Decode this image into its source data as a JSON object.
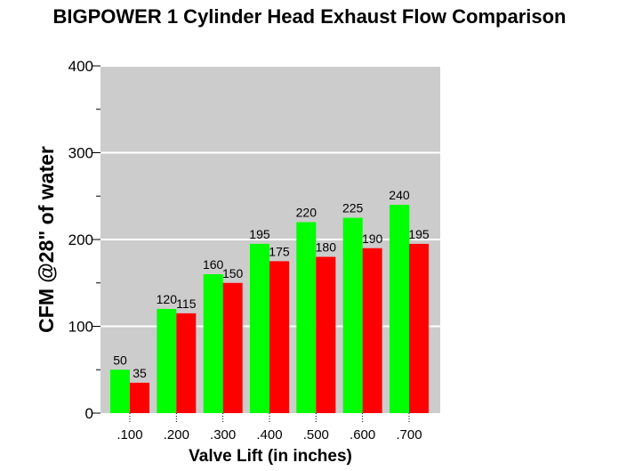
{
  "chart_data": {
    "type": "bar",
    "title": "BIGPOWER 1 Cylinder Head Exhaust Flow Comparison",
    "xlabel": "Valve Lift (in inches)",
    "ylabel": "CFM @28\" of water",
    "categories": [
      ".100",
      ".200",
      ".300",
      ".400",
      ".500",
      ".600",
      ".700"
    ],
    "series": [
      {
        "values": [
          50,
          120,
          160,
          195,
          220,
          225,
          240
        ],
        "color": "#00ff00"
      },
      {
        "values": [
          35,
          115,
          150,
          175,
          180,
          190,
          195
        ],
        "color": "#ff0000"
      }
    ],
    "ylim": [
      0,
      400
    ],
    "yticks": [
      "0",
      "100",
      "200",
      "300",
      "400"
    ],
    "grid": true,
    "plot_background": "#cccccc",
    "gridline_color": "#ffffff"
  }
}
